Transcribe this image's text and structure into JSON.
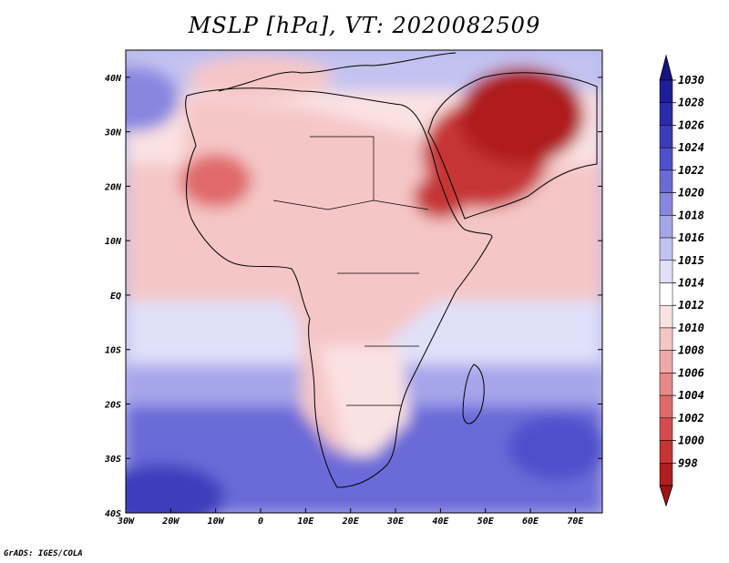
{
  "title": "MSLP [hPa], VT: 2020082509",
  "credit": "GrADS: IGES/COLA",
  "map": {
    "lon_range": [
      -30,
      76
    ],
    "lat_range": [
      -40,
      45
    ],
    "x_ticks": [
      {
        "lon": -30,
        "label": "30W"
      },
      {
        "lon": -20,
        "label": "20W"
      },
      {
        "lon": -10,
        "label": "10W"
      },
      {
        "lon": 0,
        "label": "0"
      },
      {
        "lon": 10,
        "label": "10E"
      },
      {
        "lon": 20,
        "label": "20E"
      },
      {
        "lon": 30,
        "label": "30E"
      },
      {
        "lon": 40,
        "label": "40E"
      },
      {
        "lon": 50,
        "label": "50E"
      },
      {
        "lon": 60,
        "label": "60E"
      },
      {
        "lon": 70,
        "label": "70E"
      }
    ],
    "y_ticks": [
      {
        "lat": 40,
        "label": "40N"
      },
      {
        "lat": 30,
        "label": "30N"
      },
      {
        "lat": 20,
        "label": "20N"
      },
      {
        "lat": 10,
        "label": "10N"
      },
      {
        "lat": 0,
        "label": "EQ"
      },
      {
        "lat": -10,
        "label": "10S"
      },
      {
        "lat": -20,
        "label": "20S"
      },
      {
        "lat": -30,
        "label": "30S"
      },
      {
        "lat": -40,
        "label": "40S"
      }
    ],
    "background_color": "#b5b5ea"
  },
  "colorbar": {
    "levels": [
      {
        "label": "1030",
        "color": "#1e1e99"
      },
      {
        "label": "1028",
        "color": "#2b2bab"
      },
      {
        "label": "1026",
        "color": "#3c3cbd"
      },
      {
        "label": "1024",
        "color": "#5050cc"
      },
      {
        "label": "1022",
        "color": "#6b6bd8"
      },
      {
        "label": "1020",
        "color": "#8787e0"
      },
      {
        "label": "1018",
        "color": "#a5a5ea"
      },
      {
        "label": "1016",
        "color": "#c3c3f1"
      },
      {
        "label": "1015",
        "color": "#e0e0f9"
      },
      {
        "label": "1014",
        "color": "#ffffff"
      },
      {
        "label": "1012",
        "color": "#fbe2e2"
      },
      {
        "label": "1010",
        "color": "#f5c6c6"
      },
      {
        "label": "1008",
        "color": "#eea8a8"
      },
      {
        "label": "1006",
        "color": "#e78989"
      },
      {
        "label": "1004",
        "color": "#e06a6a"
      },
      {
        "label": "1002",
        "color": "#d64c4c"
      },
      {
        "label": "1000",
        "color": "#c63434"
      },
      {
        "label": "998",
        "color": "#b01e1e"
      }
    ],
    "top_arrow_color": "#141480",
    "bottom_arrow_color": "#a01414"
  },
  "pressure_regions": [
    {
      "name": "arabian-heat-low",
      "lon": 50,
      "lat": 26,
      "rx": 14,
      "ry": 10,
      "color": "#c63434"
    },
    {
      "name": "persian-gulf-low",
      "lon": 58,
      "lat": 33,
      "rx": 14,
      "ry": 9,
      "color": "#b01e1e"
    },
    {
      "name": "red-sea-low",
      "lon": 40,
      "lat": 18,
      "rx": 6,
      "ry": 4,
      "color": "#c63434"
    },
    {
      "name": "sahara-heat-low",
      "lon": -10,
      "lat": 21,
      "rx": 8,
      "ry": 5,
      "color": "#e06a6a"
    },
    {
      "name": "azores-ridge",
      "lon": -28,
      "lat": 36,
      "rx": 10,
      "ry": 6,
      "color": "#8787e0"
    },
    {
      "name": "st-helena-high",
      "lon": -22,
      "lat": -37,
      "rx": 14,
      "ry": 6,
      "color": "#3c3cbd"
    },
    {
      "name": "mascarene-high",
      "lon": 66,
      "lat": -28,
      "rx": 11,
      "ry": 6,
      "color": "#5050cc"
    },
    {
      "name": "mediterranean-ridge",
      "lon": 0,
      "lat": 40,
      "rx": 16,
      "ry": 4,
      "color": "#f5c6c6"
    }
  ]
}
